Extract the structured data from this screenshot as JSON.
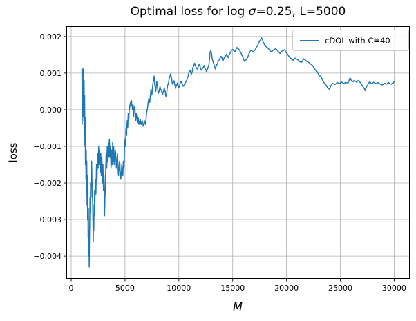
{
  "title": {
    "prefix": "Optimal loss for log ",
    "sigma": "σ",
    "suffix": "=0.25, L=5000"
  },
  "colors": {
    "line": "#1f77b4",
    "grid": "#b0b0b0",
    "spine": "#000000",
    "background": "#ffffff",
    "legend_border": "#cccccc",
    "text": "#000000"
  },
  "chart_data": {
    "type": "line",
    "title": "Optimal loss for log σ=0.25, L=5000",
    "xlabel": "M",
    "ylabel": "loss",
    "grid": true,
    "legend_position": "upper right",
    "xlim": [
      -450,
      31450
    ],
    "ylim": [
      -0.00462,
      0.00228
    ],
    "x_ticks": [
      {
        "v": 0,
        "label": "0"
      },
      {
        "v": 5000,
        "label": "5000"
      },
      {
        "v": 10000,
        "label": "10000"
      },
      {
        "v": 15000,
        "label": "15000"
      },
      {
        "v": 20000,
        "label": "20000"
      },
      {
        "v": 25000,
        "label": "25000"
      },
      {
        "v": 30000,
        "label": "30000"
      }
    ],
    "y_ticks": [
      {
        "v": 0.002,
        "label": "0.002"
      },
      {
        "v": 0.001,
        "label": "0.001"
      },
      {
        "v": 0.0,
        "label": "0.000"
      },
      {
        "v": -0.001,
        "label": "−0.001"
      },
      {
        "v": -0.002,
        "label": "−0.002"
      },
      {
        "v": -0.003,
        "label": "−0.003"
      },
      {
        "v": -0.004,
        "label": "−0.004"
      }
    ],
    "render": {
      "jitter_seed": 7,
      "jitter_subdiv": 3,
      "jitter_max": 0.00012
    },
    "series": [
      {
        "name": "cDOL with C=40",
        "color": "#1f77b4",
        "points": [
          [
            1000,
            0.00115
          ],
          [
            1025,
            -0.0004
          ],
          [
            1050,
            0.0009
          ],
          [
            1075,
            -0.0002
          ],
          [
            1100,
            0.0011
          ],
          [
            1125,
            0.0001
          ],
          [
            1150,
            0.00112
          ],
          [
            1175,
            -0.0003
          ],
          [
            1200,
            0.0008
          ],
          [
            1225,
            -0.0006
          ],
          [
            1250,
            0.0004
          ],
          [
            1275,
            -0.001
          ],
          [
            1300,
            -0.0002
          ],
          [
            1325,
            -0.0015
          ],
          [
            1350,
            -0.0007
          ],
          [
            1375,
            -0.0019
          ],
          [
            1400,
            -0.0011
          ],
          [
            1425,
            -0.0023
          ],
          [
            1450,
            -0.0014
          ],
          [
            1475,
            -0.0026
          ],
          [
            1500,
            -0.0018
          ],
          [
            1525,
            -0.003
          ],
          [
            1550,
            -0.0022
          ],
          [
            1575,
            -0.0035
          ],
          [
            1600,
            -0.0027
          ],
          [
            1625,
            -0.004
          ],
          [
            1650,
            -0.0033
          ],
          [
            1675,
            -0.0043
          ],
          [
            1700,
            -0.0036
          ],
          [
            1725,
            -0.003
          ],
          [
            1750,
            -0.0024
          ],
          [
            1775,
            -0.0028
          ],
          [
            1800,
            -0.002
          ],
          [
            1825,
            -0.0024
          ],
          [
            1850,
            -0.0017
          ],
          [
            1875,
            -0.0021
          ],
          [
            1900,
            -0.0014
          ],
          [
            1925,
            -0.0018
          ],
          [
            1950,
            -0.0024
          ],
          [
            1975,
            -0.002
          ],
          [
            2000,
            -0.0027
          ],
          [
            2025,
            -0.0031
          ],
          [
            2050,
            -0.0036
          ],
          [
            2075,
            -0.003
          ],
          [
            2100,
            -0.0033
          ],
          [
            2125,
            -0.0026
          ],
          [
            2150,
            -0.0029
          ],
          [
            2175,
            -0.0022
          ],
          [
            2200,
            -0.0026
          ],
          [
            2250,
            -0.0019
          ],
          [
            2300,
            -0.0023
          ],
          [
            2350,
            -0.0015
          ],
          [
            2400,
            -0.0019
          ],
          [
            2450,
            -0.0012
          ],
          [
            2500,
            -0.0016
          ],
          [
            2550,
            -0.001
          ],
          [
            2600,
            -0.0015
          ],
          [
            2650,
            -0.0011
          ],
          [
            2700,
            -0.0017
          ],
          [
            2750,
            -0.0012
          ],
          [
            2800,
            -0.0018
          ],
          [
            2850,
            -0.0013
          ],
          [
            2900,
            -0.002
          ],
          [
            2950,
            -0.0015
          ],
          [
            3000,
            -0.0022
          ],
          [
            3050,
            -0.0018
          ],
          [
            3100,
            -0.0029
          ],
          [
            3150,
            -0.0023
          ],
          [
            3200,
            -0.0017
          ],
          [
            3250,
            -0.0012
          ],
          [
            3300,
            -0.0016
          ],
          [
            3350,
            -0.001
          ],
          [
            3400,
            -0.0014
          ],
          [
            3450,
            -0.0009
          ],
          [
            3500,
            -0.0013
          ],
          [
            3550,
            -0.0008
          ],
          [
            3600,
            -0.0013
          ],
          [
            3650,
            -0.001
          ],
          [
            3700,
            -0.0016
          ],
          [
            3750,
            -0.0011
          ],
          [
            3800,
            -0.0015
          ],
          [
            3850,
            -0.0009
          ],
          [
            3900,
            -0.0014
          ],
          [
            3950,
            -0.001
          ],
          [
            4000,
            -0.0015
          ],
          [
            4100,
            -0.0011
          ],
          [
            4200,
            -0.0016
          ],
          [
            4300,
            -0.0012
          ],
          [
            4400,
            -0.0018
          ],
          [
            4500,
            -0.0014
          ],
          [
            4600,
            -0.0019
          ],
          [
            4700,
            -0.0015
          ],
          [
            4800,
            -0.0018
          ],
          [
            4850,
            -0.0014
          ],
          [
            4900,
            -0.0016
          ],
          [
            4950,
            -0.0011
          ],
          [
            5000,
            -0.0008
          ],
          [
            5050,
            -0.001
          ],
          [
            5100,
            -0.0005
          ],
          [
            5150,
            -0.0007
          ],
          [
            5200,
            -0.0003
          ],
          [
            5250,
            -0.0005
          ],
          [
            5300,
            -0.0001
          ],
          [
            5350,
            -0.0003
          ],
          [
            5400,
            0.0
          ],
          [
            5450,
            0.0001
          ],
          [
            5500,
            0.0002
          ],
          [
            5550,
            0.00012
          ],
          [
            5600,
            0.00025
          ],
          [
            5700,
            0.0
          ],
          [
            5750,
            0.00015
          ],
          [
            5800,
            -0.0002
          ],
          [
            5850,
            5e-05
          ],
          [
            5900,
            0.0001
          ],
          [
            5950,
            -0.0001
          ],
          [
            6000,
            -0.0003
          ],
          [
            6050,
            -0.0001
          ],
          [
            6100,
            -0.0002
          ],
          [
            6150,
            -0.00035
          ],
          [
            6200,
            -0.0002
          ],
          [
            6300,
            -0.0004
          ],
          [
            6400,
            -0.00025
          ],
          [
            6500,
            -0.0004
          ],
          [
            6600,
            -0.0003
          ],
          [
            6700,
            -0.00045
          ],
          [
            6800,
            -0.0003
          ],
          [
            6900,
            -0.0004
          ],
          [
            7000,
            -0.0001
          ],
          [
            7100,
            5e-05
          ],
          [
            7200,
            0.0003
          ],
          [
            7300,
            0.0002
          ],
          [
            7400,
            0.00055
          ],
          [
            7500,
            0.0004
          ],
          [
            7600,
            0.00073
          ],
          [
            7700,
            0.00092
          ],
          [
            7850,
            0.0005
          ],
          [
            7950,
            0.00077
          ],
          [
            8100,
            0.00045
          ],
          [
            8250,
            0.00064
          ],
          [
            8400,
            0.0005
          ],
          [
            8500,
            0.00042
          ],
          [
            8650,
            0.0006
          ],
          [
            8800,
            0.00036
          ],
          [
            9000,
            0.0007
          ],
          [
            9120,
            0.00085
          ],
          [
            9240,
            0.00098
          ],
          [
            9400,
            0.0007
          ],
          [
            9560,
            0.00079
          ],
          [
            9700,
            0.00058
          ],
          [
            9850,
            0.00073
          ],
          [
            10000,
            0.0006
          ],
          [
            10200,
            0.00077
          ],
          [
            10400,
            0.00064
          ],
          [
            10600,
            0.00073
          ],
          [
            10800,
            0.00087
          ],
          [
            11030,
            0.00108
          ],
          [
            11150,
            0.00096
          ],
          [
            11460,
            0.00127
          ],
          [
            11700,
            0.00111
          ],
          [
            11900,
            0.00124
          ],
          [
            12100,
            0.00108
          ],
          [
            12350,
            0.00121
          ],
          [
            12550,
            0.00105
          ],
          [
            12750,
            0.00118
          ],
          [
            12960,
            0.00162
          ],
          [
            13150,
            0.00133
          ],
          [
            13390,
            0.00111
          ],
          [
            13650,
            0.00133
          ],
          [
            13920,
            0.00146
          ],
          [
            14100,
            0.00133
          ],
          [
            14440,
            0.00152
          ],
          [
            14600,
            0.00142
          ],
          [
            14800,
            0.00158
          ],
          [
            15000,
            0.00165
          ],
          [
            15200,
            0.00158
          ],
          [
            15400,
            0.0017
          ],
          [
            15600,
            0.00164
          ],
          [
            15730,
            0.00158
          ],
          [
            15900,
            0.00147
          ],
          [
            16100,
            0.00132
          ],
          [
            16300,
            0.00138
          ],
          [
            16500,
            0.00152
          ],
          [
            16700,
            0.00163
          ],
          [
            16900,
            0.00158
          ],
          [
            17100,
            0.00165
          ],
          [
            17300,
            0.00175
          ],
          [
            17500,
            0.00188
          ],
          [
            17700,
            0.00196
          ],
          [
            17850,
            0.00183
          ],
          [
            18000,
            0.00176
          ],
          [
            18200,
            0.0017
          ],
          [
            18400,
            0.00164
          ],
          [
            18600,
            0.00158
          ],
          [
            18800,
            0.00163
          ],
          [
            19000,
            0.00167
          ],
          [
            19200,
            0.00159
          ],
          [
            19400,
            0.00154
          ],
          [
            19600,
            0.00161
          ],
          [
            19800,
            0.00164
          ],
          [
            20000,
            0.00155
          ],
          [
            20200,
            0.00146
          ],
          [
            20400,
            0.0014
          ],
          [
            20600,
            0.00135
          ],
          [
            20800,
            0.00141
          ],
          [
            21000,
            0.00138
          ],
          [
            21200,
            0.00132
          ],
          [
            21400,
            0.0013
          ],
          [
            21600,
            0.00139
          ],
          [
            21800,
            0.00134
          ],
          [
            22000,
            0.0013
          ],
          [
            22200,
            0.00126
          ],
          [
            22400,
            0.00121
          ],
          [
            22600,
            0.00112
          ],
          [
            22800,
            0.00106
          ],
          [
            23000,
            0.00095
          ],
          [
            23200,
            0.0009
          ],
          [
            23400,
            0.00079
          ],
          [
            23600,
            0.0007
          ],
          [
            23800,
            0.0006
          ],
          [
            24000,
            0.00056
          ],
          [
            24100,
            0.00065
          ],
          [
            24300,
            0.00072
          ],
          [
            24500,
            0.00069
          ],
          [
            24700,
            0.00075
          ],
          [
            24900,
            0.00071
          ],
          [
            25100,
            0.00076
          ],
          [
            25300,
            0.00071
          ],
          [
            25500,
            0.00075
          ],
          [
            25700,
            0.00072
          ],
          [
            25900,
            0.00087
          ],
          [
            26100,
            0.00076
          ],
          [
            26300,
            0.0008
          ],
          [
            26500,
            0.00075
          ],
          [
            26700,
            0.0008
          ],
          [
            26900,
            0.00073
          ],
          [
            27100,
            0.00063
          ],
          [
            27300,
            0.00052
          ],
          [
            27500,
            0.00066
          ],
          [
            27700,
            0.00076
          ],
          [
            27900,
            0.00071
          ],
          [
            28100,
            0.00075
          ],
          [
            28300,
            0.00071
          ],
          [
            28500,
            0.00074
          ],
          [
            28700,
            0.0007
          ],
          [
            28900,
            0.00068
          ],
          [
            29100,
            0.00072
          ],
          [
            29300,
            0.0007
          ],
          [
            29500,
            0.00074
          ],
          [
            29700,
            0.0007
          ],
          [
            29900,
            0.00073
          ],
          [
            30050,
            0.00078
          ]
        ]
      }
    ]
  }
}
